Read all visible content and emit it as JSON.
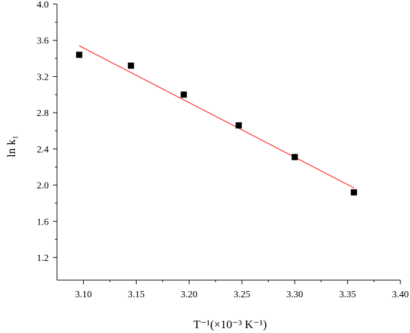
{
  "chart_data": {
    "type": "scatter",
    "xlabel": "T⁻¹(×10⁻³ K⁻¹)",
    "ylabel": "ln k₁",
    "xlim": [
      3.075,
      3.4
    ],
    "ylim": [
      0.95,
      4.0
    ],
    "x_ticks": [
      "3.10",
      "3.15",
      "3.20",
      "3.25",
      "3.30",
      "3.35",
      "3.40"
    ],
    "y_ticks": [
      "1.2",
      "1.6",
      "2.0",
      "2.4",
      "2.8",
      "3.2",
      "3.6",
      "4.0"
    ],
    "grid": false,
    "series": [
      {
        "marker": "square",
        "color": "#000000",
        "x": [
          3.096,
          3.145,
          3.195,
          3.247,
          3.3,
          3.356
        ],
        "y": [
          3.44,
          3.32,
          3.0,
          2.66,
          2.31,
          1.92
        ]
      }
    ],
    "fit_line": {
      "color": "#ff0000",
      "x": [
        3.096,
        3.356
      ],
      "y": [
        3.54,
        1.97
      ]
    }
  }
}
